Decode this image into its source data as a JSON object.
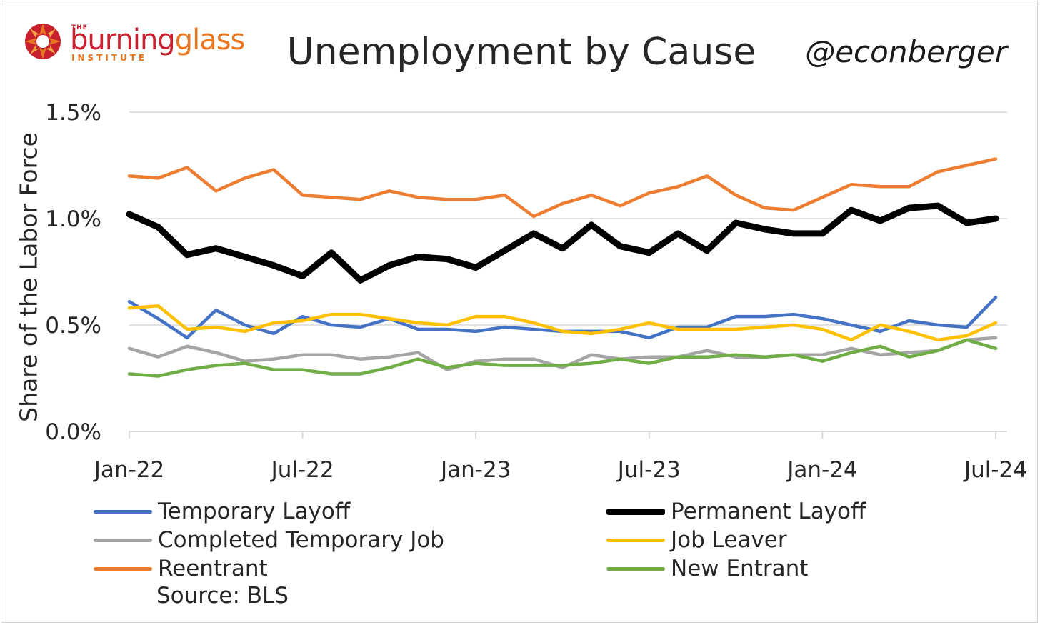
{
  "title": "Unemployment by Cause",
  "handle": "@econberger",
  "logo": {
    "the": "THE",
    "word_a": "burning",
    "word_b": "glass",
    "institute": "INSTITUTE"
  },
  "source": "Source: BLS",
  "colors": {
    "temporary_layoff": "#4472c4",
    "permanent_layoff": "#000000",
    "completed_temporary_job": "#a5a5a5",
    "job_leaver": "#ffc000",
    "reentrant": "#ed7d31",
    "new_entrant": "#70ad47",
    "grid": "#d9d9d9"
  },
  "chart_data": {
    "type": "line",
    "title": "Unemployment by Cause",
    "ylabel": "Share of the Labor Force",
    "xlabel": "",
    "ylim": [
      0,
      1.5
    ],
    "y_ticks": [
      "0.0%",
      "0.5%",
      "1.0%",
      "1.5%"
    ],
    "x_ticks": [
      "Jan-22",
      "Jul-22",
      "Jan-23",
      "Jul-23",
      "Jan-24",
      "Jul-24"
    ],
    "grid": true,
    "legend_position": "bottom",
    "x": [
      "2022-01",
      "2022-02",
      "2022-03",
      "2022-04",
      "2022-05",
      "2022-06",
      "2022-07",
      "2022-08",
      "2022-09",
      "2022-10",
      "2022-11",
      "2022-12",
      "2023-01",
      "2023-02",
      "2023-03",
      "2023-04",
      "2023-05",
      "2023-06",
      "2023-07",
      "2023-08",
      "2023-09",
      "2023-10",
      "2023-11",
      "2023-12",
      "2024-01",
      "2024-02",
      "2024-03",
      "2024-04",
      "2024-05",
      "2024-06",
      "2024-07"
    ],
    "series": [
      {
        "name": "Temporary Layoff",
        "key": "temporary_layoff",
        "values": [
          0.61,
          0.53,
          0.44,
          0.57,
          0.5,
          0.46,
          0.54,
          0.5,
          0.49,
          0.53,
          0.48,
          0.48,
          0.47,
          0.49,
          0.48,
          0.47,
          0.47,
          0.47,
          0.44,
          0.49,
          0.49,
          0.54,
          0.54,
          0.55,
          0.53,
          0.5,
          0.47,
          0.52,
          0.5,
          0.49,
          0.63
        ]
      },
      {
        "name": "Permanent Layoff",
        "key": "permanent_layoff",
        "values": [
          1.02,
          0.96,
          0.83,
          0.86,
          0.82,
          0.78,
          0.73,
          0.84,
          0.71,
          0.78,
          0.82,
          0.81,
          0.77,
          0.85,
          0.93,
          0.86,
          0.97,
          0.87,
          0.84,
          0.93,
          0.85,
          0.98,
          0.95,
          0.93,
          0.93,
          1.04,
          0.99,
          1.05,
          1.06,
          0.98,
          1.0
        ]
      },
      {
        "name": "Completed Temporary Job",
        "key": "completed_temporary_job",
        "values": [
          0.39,
          0.35,
          0.4,
          0.37,
          0.33,
          0.34,
          0.36,
          0.36,
          0.34,
          0.35,
          0.37,
          0.29,
          0.33,
          0.34,
          0.34,
          0.3,
          0.36,
          0.34,
          0.35,
          0.35,
          0.38,
          0.35,
          0.35,
          0.36,
          0.36,
          0.39,
          0.36,
          0.37,
          0.38,
          0.43,
          0.44
        ]
      },
      {
        "name": "Job Leaver",
        "key": "job_leaver",
        "values": [
          0.58,
          0.59,
          0.48,
          0.49,
          0.47,
          0.51,
          0.52,
          0.55,
          0.55,
          0.53,
          0.51,
          0.5,
          0.54,
          0.54,
          0.51,
          0.47,
          0.46,
          0.48,
          0.51,
          0.48,
          0.48,
          0.48,
          0.49,
          0.5,
          0.48,
          0.43,
          0.5,
          0.47,
          0.43,
          0.45,
          0.51
        ]
      },
      {
        "name": "Reentrant",
        "key": "reentrant",
        "values": [
          1.2,
          1.19,
          1.24,
          1.13,
          1.19,
          1.23,
          1.11,
          1.1,
          1.09,
          1.13,
          1.1,
          1.09,
          1.09,
          1.11,
          1.01,
          1.07,
          1.11,
          1.06,
          1.12,
          1.15,
          1.2,
          1.11,
          1.05,
          1.04,
          1.1,
          1.16,
          1.15,
          1.15,
          1.22,
          1.25,
          1.28
        ]
      },
      {
        "name": "New Entrant",
        "key": "new_entrant",
        "values": [
          0.27,
          0.26,
          0.29,
          0.31,
          0.32,
          0.29,
          0.29,
          0.27,
          0.27,
          0.3,
          0.34,
          0.3,
          0.32,
          0.31,
          0.31,
          0.31,
          0.32,
          0.34,
          0.32,
          0.35,
          0.35,
          0.36,
          0.35,
          0.36,
          0.33,
          0.37,
          0.4,
          0.35,
          0.38,
          0.43,
          0.39
        ]
      }
    ]
  }
}
